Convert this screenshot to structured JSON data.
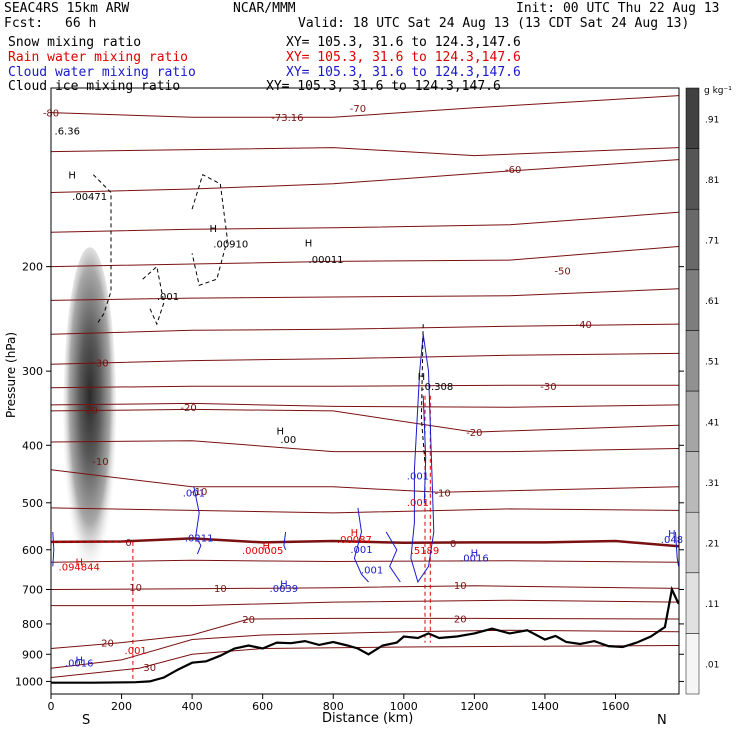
{
  "header": {
    "model": "SEAC4RS 15km ARW",
    "org": "NCAR/MMM",
    "init": "Init: 00 UTC Thu 22 Aug 13",
    "fcst_label": "Fcst:",
    "fcst_value": "66 h",
    "valid": "Valid: 18 UTC Sat 24 Aug 13 (13 CDT Sat 24 Aug 13)",
    "fields": [
      {
        "name": "Snow mixing ratio",
        "xy": "XY= 105.3, 31.6 to 124.3,147.6",
        "color": "#000000"
      },
      {
        "name": "Rain water mixing ratio",
        "xy": "XY= 105.3, 31.6 to 124.3,147.6",
        "color": "#dd0000"
      },
      {
        "name": "Cloud water mixing ratio",
        "xy": "XY= 105.3, 31.6 to 124.3,147.6",
        "color": "#1a1acc"
      },
      {
        "name": "Cloud ice mixing ratio",
        "xy": "XY= 105.3, 31.6 to 124.3,147.6",
        "color": "#000000"
      }
    ]
  },
  "colorbar": {
    "unit": "g kg⁻¹",
    "ticks": [
      ".91",
      ".81",
      ".71",
      ".61",
      ".51",
      ".41",
      ".31",
      ".21",
      ".11",
      ".01"
    ]
  },
  "chart_data": {
    "type": "heatmap",
    "title": "",
    "xlabel": "Distance (km)",
    "ylabel": "Pressure (hPa)",
    "xlim": [
      0,
      1780
    ],
    "ylim": [
      1050,
      100
    ],
    "y_scale": "log",
    "xticks": [
      0,
      200,
      400,
      600,
      800,
      1000,
      1200,
      1400,
      1600
    ],
    "yticks": [
      200,
      300,
      400,
      500,
      600,
      700,
      800,
      900,
      1000
    ],
    "end_labels": {
      "left": "S",
      "right": "N"
    },
    "temperature_contours": {
      "color": "#7a1010",
      "labels": [
        {
          "x": 0,
          "p": 110,
          "t": "-80"
        },
        {
          "x": 670,
          "p": 112,
          "t": "-73.16"
        },
        {
          "x": 870,
          "p": 108,
          "t": "-70"
        },
        {
          "x": 1310,
          "p": 137,
          "t": "-60"
        },
        {
          "x": 1450,
          "p": 203,
          "t": "-50"
        },
        {
          "x": 1510,
          "p": 250,
          "t": "-40"
        },
        {
          "x": 1410,
          "p": 318,
          "t": "-30"
        },
        {
          "x": 140,
          "p": 290,
          "t": "-30"
        },
        {
          "x": 110,
          "p": 348,
          "t": "-20"
        },
        {
          "x": 390,
          "p": 345,
          "t": "-20"
        },
        {
          "x": 1200,
          "p": 380,
          "t": "-20"
        },
        {
          "x": 140,
          "p": 425,
          "t": "-10"
        },
        {
          "x": 420,
          "p": 478,
          "t": "-10"
        },
        {
          "x": 1110,
          "p": 480,
          "t": "-10"
        },
        {
          "x": 220,
          "p": 582,
          "t": "0"
        },
        {
          "x": 1140,
          "p": 584,
          "t": "0"
        },
        {
          "x": 240,
          "p": 693,
          "t": "10"
        },
        {
          "x": 480,
          "p": 696,
          "t": "10"
        },
        {
          "x": 1160,
          "p": 688,
          "t": "10"
        },
        {
          "x": 560,
          "p": 785,
          "t": "20"
        },
        {
          "x": 1160,
          "p": 783,
          "t": "20"
        },
        {
          "x": 160,
          "p": 860,
          "t": "20"
        },
        {
          "x": 280,
          "p": 945,
          "t": "30"
        }
      ],
      "lines": [
        {
          "t": -73,
          "pts": [
            [
              0,
              110
            ],
            [
              400,
              112
            ],
            [
              800,
              112
            ],
            [
              1200,
              108
            ],
            [
              1779,
              103
            ]
          ]
        },
        {
          "t": -65,
          "pts": [
            [
              0,
              128
            ],
            [
              400,
              127
            ],
            [
              800,
              126
            ],
            [
              1200,
              130
            ],
            [
              1779,
              126
            ]
          ]
        },
        {
          "t": -60,
          "pts": [
            [
              0,
              150
            ],
            [
              400,
              148
            ],
            [
              800,
              145
            ],
            [
              1300,
              138
            ],
            [
              1779,
              132
            ]
          ]
        },
        {
          "t": -55,
          "pts": [
            [
              0,
              175
            ],
            [
              400,
              173
            ],
            [
              800,
              172
            ],
            [
              1300,
              170
            ],
            [
              1779,
              162
            ]
          ]
        },
        {
          "t": -50,
          "pts": [
            [
              0,
              200
            ],
            [
              400,
              198
            ],
            [
              800,
              196
            ],
            [
              1300,
              195
            ],
            [
              1779,
              185
            ]
          ]
        },
        {
          "t": -45,
          "pts": [
            [
              0,
              228
            ],
            [
              400,
              226
            ],
            [
              800,
              225
            ],
            [
              1300,
              224
            ],
            [
              1779,
              218
            ]
          ]
        },
        {
          "t": -40,
          "pts": [
            [
              0,
              260
            ],
            [
              400,
              256
            ],
            [
              800,
              255
            ],
            [
              1300,
              252
            ],
            [
              1779,
              250
            ]
          ]
        },
        {
          "t": -35,
          "pts": [
            [
              0,
              292
            ],
            [
              400,
              288
            ],
            [
              800,
              286
            ],
            [
              1300,
              282
            ],
            [
              1779,
              280
            ]
          ]
        },
        {
          "t": -30,
          "pts": [
            [
              0,
              320
            ],
            [
              400,
              318
            ],
            [
              800,
              318
            ],
            [
              1300,
              317
            ],
            [
              1779,
              317
            ]
          ]
        },
        {
          "t": -25,
          "pts": [
            [
              0,
              342
            ],
            [
              400,
              340
            ],
            [
              800,
              344
            ],
            [
              1300,
              345
            ],
            [
              1779,
              342
            ]
          ]
        },
        {
          "t": -20,
          "pts": [
            [
              0,
              350
            ],
            [
              400,
              348
            ],
            [
              800,
              350
            ],
            [
              1200,
              380
            ],
            [
              1779,
              370
            ]
          ]
        },
        {
          "t": -15,
          "pts": [
            [
              0,
              395
            ],
            [
              400,
              393
            ],
            [
              800,
              410
            ],
            [
              1300,
              410
            ],
            [
              1779,
              405
            ]
          ]
        },
        {
          "t": -10,
          "pts": [
            [
              0,
              440
            ],
            [
              400,
              470
            ],
            [
              800,
              470
            ],
            [
              1100,
              480
            ],
            [
              1779,
              470
            ]
          ]
        },
        {
          "t": -5,
          "pts": [
            [
              0,
              510
            ],
            [
              400,
              515
            ],
            [
              800,
              520
            ],
            [
              1300,
              512
            ],
            [
              1779,
              515
            ]
          ]
        },
        {
          "t": 0,
          "bold": true,
          "pts": [
            [
              0,
              582
            ],
            [
              200,
              581
            ],
            [
              400,
              574
            ],
            [
              600,
              583
            ],
            [
              800,
              580
            ],
            [
              1000,
              584
            ],
            [
              1200,
              583
            ],
            [
              1400,
              583
            ],
            [
              1600,
              580
            ],
            [
              1779,
              592
            ]
          ]
        },
        {
          "t": 5,
          "pts": [
            [
              0,
              630
            ],
            [
              400,
              625
            ],
            [
              800,
              628
            ],
            [
              1300,
              626
            ],
            [
              1779,
              630
            ]
          ]
        },
        {
          "t": 10,
          "pts": [
            [
              0,
              700
            ],
            [
              400,
              698
            ],
            [
              800,
              695
            ],
            [
              1200,
              690
            ],
            [
              1779,
              697
            ]
          ]
        },
        {
          "t": 15,
          "pts": [
            [
              0,
              745
            ],
            [
              400,
              745
            ],
            [
              800,
              735
            ],
            [
              1300,
              730
            ],
            [
              1779,
              735
            ]
          ]
        },
        {
          "t": 20,
          "pts": [
            [
              0,
              880
            ],
            [
              200,
              860
            ],
            [
              400,
              835
            ],
            [
              560,
              785
            ],
            [
              800,
              783
            ],
            [
              1200,
              783
            ],
            [
              1779,
              785
            ]
          ]
        },
        {
          "t": 25,
          "pts": [
            [
              0,
              950
            ],
            [
              200,
              920
            ],
            [
              400,
              850
            ],
            [
              600,
              835
            ],
            [
              1000,
              825
            ],
            [
              1300,
              820
            ],
            [
              1779,
              825
            ]
          ]
        },
        {
          "t": 30,
          "pts": [
            [
              0,
              985
            ],
            [
              250,
              950
            ],
            [
              400,
              900
            ],
            [
              600,
              880
            ],
            [
              1000,
              875
            ],
            [
              1779,
              870
            ]
          ]
        }
      ]
    },
    "cloud_ice_shading": {
      "description_levels": [
        0.01,
        0.91
      ],
      "core": {
        "x": [
          60,
          160
        ],
        "p": [
          210,
          590
        ],
        "max": 0.85
      }
    },
    "cloud_water_contours": {
      "color": "#1a1acc",
      "labels": [
        {
          "x": 405,
          "p": 480,
          "t": ".001"
        },
        {
          "x": 420,
          "p": 572,
          "t": ".0211"
        },
        {
          "x": 880,
          "p": 598,
          "t": ".001"
        },
        {
          "x": 910,
          "p": 648,
          "t": ".001"
        },
        {
          "x": 1040,
          "p": 450,
          "t": ".001"
        },
        {
          "x": 1200,
          "p": 618,
          "t": ".0016"
        },
        {
          "x": 660,
          "p": 696,
          "t": ".0039"
        },
        {
          "x": 1760,
          "p": 575,
          "t": ".048"
        },
        {
          "x": 80,
          "p": 930,
          "t": ".0016"
        }
      ]
    },
    "rain_water_contours": {
      "color": "#dd0000",
      "labels": [
        {
          "x": 80,
          "p": 640,
          "t": ".094844"
        },
        {
          "x": 600,
          "p": 600,
          "t": ".000005"
        },
        {
          "x": 860,
          "p": 575,
          "t": ".00087"
        },
        {
          "x": 1040,
          "p": 498,
          "t": ".001"
        },
        {
          "x": 1060,
          "p": 600,
          "t": ".5189"
        },
        {
          "x": 240,
          "p": 885,
          "t": ".001"
        }
      ]
    },
    "snow_ice_labels": [
      {
        "x": 10,
        "p": 118,
        "t": ".6.36"
      },
      {
        "x": 60,
        "p": 152,
        "t": ".00471"
      },
      {
        "x": 460,
        "p": 183,
        "t": ".00910"
      },
      {
        "x": 730,
        "p": 194,
        "t": ".00011"
      },
      {
        "x": 300,
        "p": 224,
        "t": ".001"
      },
      {
        "x": 1050,
        "p": 318,
        "t": ".0.308"
      },
      {
        "x": 650,
        "p": 390,
        "t": ".00"
      }
    ],
    "highs": [
      {
        "x": 60,
        "p": 140,
        "c": "#000"
      },
      {
        "x": 460,
        "p": 172,
        "c": "#000"
      },
      {
        "x": 730,
        "p": 182,
        "c": "#000"
      },
      {
        "x": 1050,
        "p": 306,
        "c": "#000"
      },
      {
        "x": 650,
        "p": 378,
        "c": "#000"
      },
      {
        "x": 860,
        "p": 560,
        "c": "#dd0000"
      },
      {
        "x": 610,
        "p": 590,
        "c": "#dd0000"
      },
      {
        "x": 80,
        "p": 628,
        "c": "#dd0000"
      },
      {
        "x": 1200,
        "p": 606,
        "c": "#1a1acc"
      },
      {
        "x": 660,
        "p": 684,
        "c": "#1a1acc"
      },
      {
        "x": 1760,
        "p": 562,
        "c": "#1a1acc"
      },
      {
        "x": 80,
        "p": 918,
        "c": "#1a1acc"
      }
    ],
    "terrain": {
      "color": "#000000",
      "pts": [
        [
          0,
          1005
        ],
        [
          120,
          1005
        ],
        [
          240,
          1003
        ],
        [
          280,
          1000
        ],
        [
          320,
          985
        ],
        [
          360,
          955
        ],
        [
          400,
          930
        ],
        [
          440,
          925
        ],
        [
          480,
          905
        ],
        [
          520,
          880
        ],
        [
          560,
          870
        ],
        [
          600,
          880
        ],
        [
          640,
          860
        ],
        [
          680,
          862
        ],
        [
          720,
          855
        ],
        [
          760,
          868
        ],
        [
          800,
          858
        ],
        [
          840,
          870
        ],
        [
          870,
          880
        ],
        [
          900,
          900
        ],
        [
          940,
          870
        ],
        [
          980,
          860
        ],
        [
          1000,
          840
        ],
        [
          1040,
          845
        ],
        [
          1070,
          830
        ],
        [
          1100,
          845
        ],
        [
          1150,
          840
        ],
        [
          1200,
          830
        ],
        [
          1250,
          815
        ],
        [
          1300,
          830
        ],
        [
          1350,
          820
        ],
        [
          1400,
          850
        ],
        [
          1430,
          838
        ],
        [
          1460,
          858
        ],
        [
          1500,
          865
        ],
        [
          1540,
          855
        ],
        [
          1580,
          872
        ],
        [
          1620,
          875
        ],
        [
          1660,
          860
        ],
        [
          1700,
          840
        ],
        [
          1740,
          810
        ],
        [
          1760,
          700
        ],
        [
          1779,
          740
        ]
      ]
    }
  }
}
